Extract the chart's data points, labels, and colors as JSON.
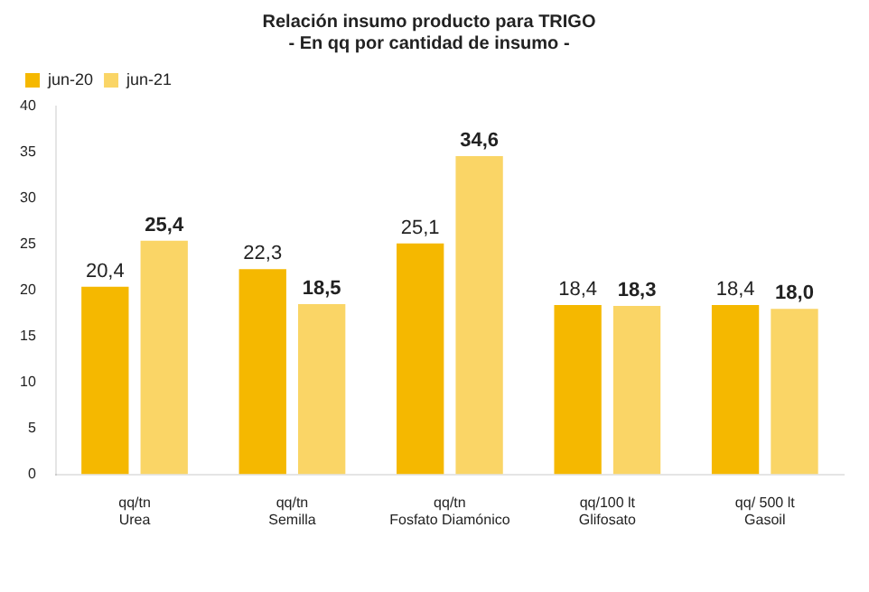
{
  "chart_data": {
    "type": "bar",
    "title": "Relación insumo producto para TRIGO",
    "subtitle": "- En qq por cantidad de insumo -",
    "categories": [
      "qq/tn\nUrea",
      "qq/tn\nSemilla",
      "qq/tn\nFosfato Diamónico",
      "qq/100 lt\nGlifosato",
      "qq/ 500 lt\nGasoil"
    ],
    "series": [
      {
        "name": "jun-20",
        "color": "#f5b800",
        "values": [
          20.4,
          22.3,
          25.1,
          18.4,
          18.4
        ],
        "value_labels": [
          "20,4",
          "22,3",
          "25,1",
          "18,4",
          "18,4"
        ]
      },
      {
        "name": "jun-21",
        "color": "#fad566",
        "values": [
          25.4,
          18.5,
          34.6,
          18.3,
          18.0
        ],
        "value_labels": [
          "25,4",
          "18,5",
          "34,6",
          "18,3",
          "18,0"
        ]
      }
    ],
    "ylim": [
      0,
      40
    ],
    "yticks": [
      0,
      5,
      10,
      15,
      20,
      25,
      30,
      35,
      40
    ],
    "grid": false,
    "legend": "top left"
  }
}
